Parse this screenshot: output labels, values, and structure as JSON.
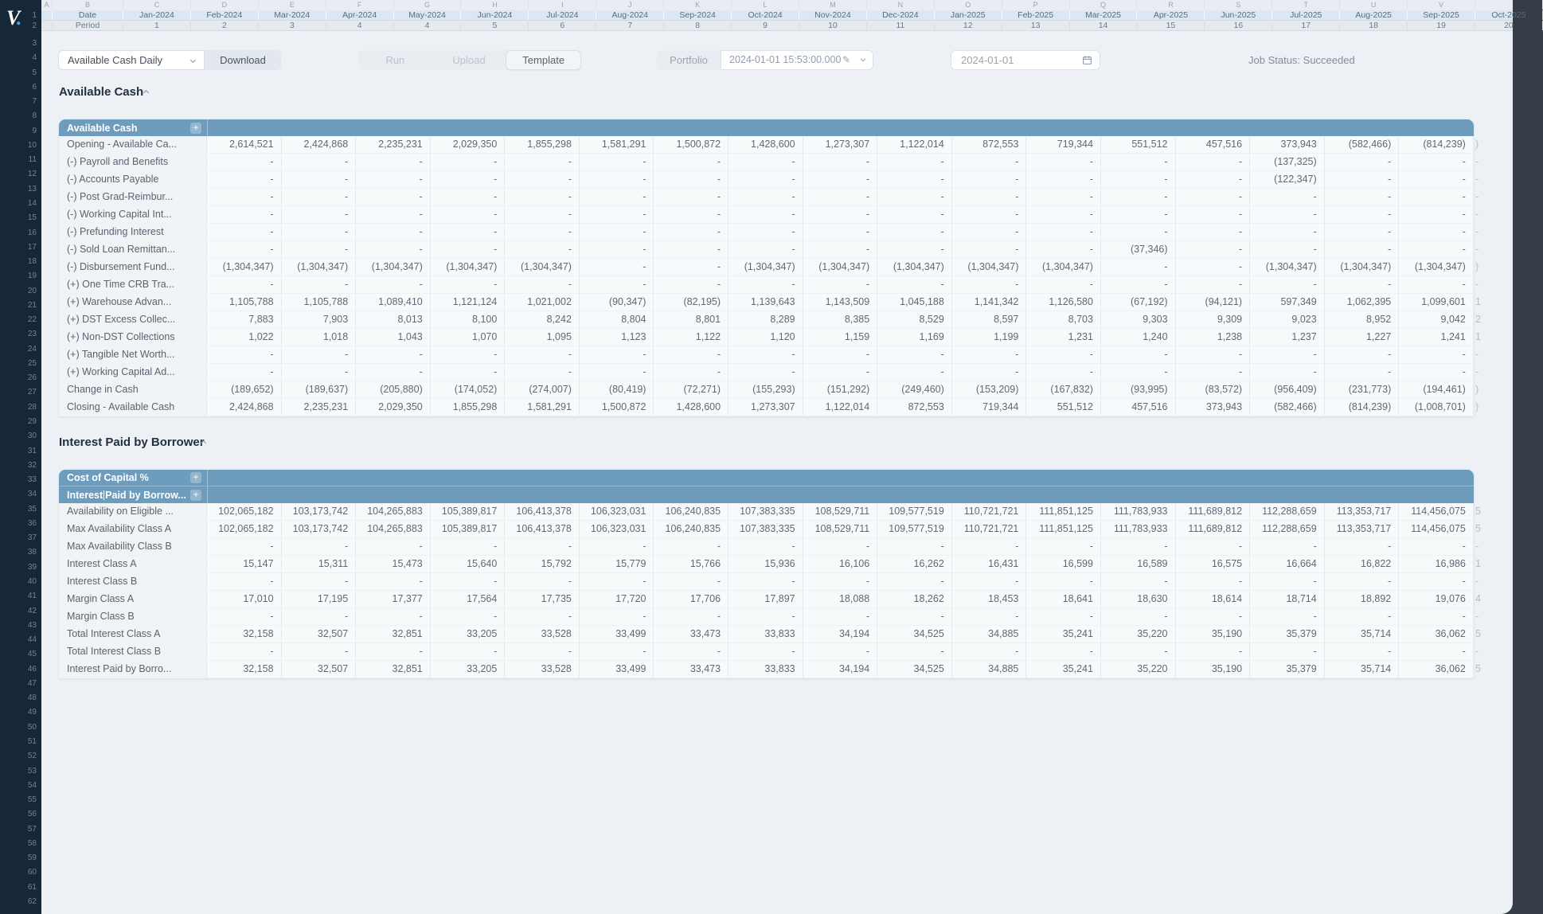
{
  "logo": {
    "v": "V",
    "dot": "."
  },
  "sheet": {
    "row_numbers_first": 1,
    "row_numbers_last": 62,
    "corner_letter_a": "A",
    "corner_letter_b": "B",
    "date_row_label": "Date",
    "period_row_label": "Period",
    "columns": [
      {
        "letter": "C",
        "date": "Jan-2024",
        "period": "1"
      },
      {
        "letter": "D",
        "date": "Feb-2024",
        "period": "2"
      },
      {
        "letter": "E",
        "date": "Mar-2024",
        "period": "3"
      },
      {
        "letter": "F",
        "date": "Apr-2024",
        "period": "4"
      },
      {
        "letter": "G",
        "date": "May-2024",
        "period": "4"
      },
      {
        "letter": "H",
        "date": "Jun-2024",
        "period": "5"
      },
      {
        "letter": "I",
        "date": "Jul-2024",
        "period": "6"
      },
      {
        "letter": "J",
        "date": "Aug-2024",
        "period": "7"
      },
      {
        "letter": "K",
        "date": "Sep-2024",
        "period": "8"
      },
      {
        "letter": "L",
        "date": "Oct-2024",
        "period": "9"
      },
      {
        "letter": "M",
        "date": "Nov-2024",
        "period": "10"
      },
      {
        "letter": "N",
        "date": "Dec-2024",
        "period": "11"
      },
      {
        "letter": "O",
        "date": "Jan-2025",
        "period": "12"
      },
      {
        "letter": "P",
        "date": "Feb-2025",
        "period": "13"
      },
      {
        "letter": "Q",
        "date": "Mar-2025",
        "period": "14"
      },
      {
        "letter": "R",
        "date": "Apr-2025",
        "period": "15"
      },
      {
        "letter": "S",
        "date": "Jun-2025",
        "period": "16"
      },
      {
        "letter": "T",
        "date": "Jul-2025",
        "period": "17"
      },
      {
        "letter": "U",
        "date": "Aug-2025",
        "period": "18"
      },
      {
        "letter": "V",
        "date": "Sep-2025",
        "period": "19"
      }
    ],
    "clipped_column": {
      "letter": "",
      "date": "Oct-2025",
      "period": "20"
    }
  },
  "toolbar": {
    "report_select": "Available Cash Daily",
    "download_label": "Download",
    "run_label": "Run",
    "upload_label": "Upload",
    "template_label": "Template",
    "portfolio_label": "Portfolio",
    "run_datetime": "2024-01-01 15:53:00.000",
    "as_of_date": "2024-01-01",
    "job_status": "Job Status: Succeeded"
  },
  "section1": {
    "title": "Available Cash",
    "table_header": "Available Cash",
    "add_button": "+",
    "rows": [
      {
        "label": "Opening - Available Ca...",
        "values": [
          "2,614,521",
          "2,424,868",
          "2,235,231",
          "2,029,350",
          "1,855,298",
          "1,581,291",
          "1,500,872",
          "1,428,600",
          "1,273,307",
          "1,122,014",
          "872,553",
          "719,344",
          "551,512",
          "457,516",
          "373,943",
          "(582,466)",
          "(814,239)"
        ]
      },
      {
        "label": "(-) Payroll and Benefits",
        "values": [
          "-",
          "-",
          "-",
          "-",
          "-",
          "-",
          "-",
          "-",
          "-",
          "-",
          "-",
          "-",
          "-",
          "-",
          "(137,325)",
          "-",
          "-"
        ]
      },
      {
        "label": "(-) Accounts Payable",
        "values": [
          "-",
          "-",
          "-",
          "-",
          "-",
          "-",
          "-",
          "-",
          "-",
          "-",
          "-",
          "-",
          "-",
          "-",
          "(122,347)",
          "-",
          "-"
        ]
      },
      {
        "label": "(-) Post Grad-Reimbur...",
        "values": [
          "-",
          "-",
          "-",
          "-",
          "-",
          "-",
          "-",
          "-",
          "-",
          "-",
          "-",
          "-",
          "-",
          "-",
          "-",
          "-",
          "-"
        ]
      },
      {
        "label": "(-) Working Capital Int...",
        "values": [
          "-",
          "-",
          "-",
          "-",
          "-",
          "-",
          "-",
          "-",
          "-",
          "-",
          "-",
          "-",
          "-",
          "-",
          "-",
          "-",
          "-"
        ]
      },
      {
        "label": "(-) Prefunding Interest",
        "values": [
          "-",
          "-",
          "-",
          "-",
          "-",
          "-",
          "-",
          "-",
          "-",
          "-",
          "-",
          "-",
          "-",
          "-",
          "-",
          "-",
          "-"
        ]
      },
      {
        "label": "(-) Sold Loan Remittan...",
        "values": [
          "-",
          "-",
          "-",
          "-",
          "-",
          "-",
          "-",
          "-",
          "-",
          "-",
          "-",
          "-",
          "(37,346)",
          "-",
          "-",
          "-",
          "-"
        ]
      },
      {
        "label": "(-) Disbursement Fund...",
        "values": [
          "(1,304,347)",
          "(1,304,347)",
          "(1,304,347)",
          "(1,304,347)",
          "(1,304,347)",
          "-",
          "-",
          "(1,304,347)",
          "(1,304,347)",
          "(1,304,347)",
          "(1,304,347)",
          "(1,304,347)",
          "-",
          "-",
          "(1,304,347)",
          "(1,304,347)",
          "(1,304,347)"
        ]
      },
      {
        "label": "(+) One Time CRB Tra...",
        "values": [
          "-",
          "-",
          "-",
          "-",
          "-",
          "-",
          "-",
          "-",
          "-",
          "-",
          "-",
          "-",
          "-",
          "-",
          "-",
          "-",
          "-"
        ]
      },
      {
        "label": "(+) Warehouse Advan...",
        "values": [
          "1,105,788",
          "1,105,788",
          "1,089,410",
          "1,121,124",
          "1,021,002",
          "(90,347)",
          "(82,195)",
          "1,139,643",
          "1,143,509",
          "1,045,188",
          "1,141,342",
          "1,126,580",
          "(67,192)",
          "(94,121)",
          "597,349",
          "1,062,395",
          "1,099,601"
        ]
      },
      {
        "label": "(+) DST Excess Collec...",
        "values": [
          "7,883",
          "7,903",
          "8,013",
          "8,100",
          "8,242",
          "8,804",
          "8,801",
          "8,289",
          "8,385",
          "8,529",
          "8,597",
          "8,703",
          "9,303",
          "9,309",
          "9,023",
          "8,952",
          "9,042"
        ]
      },
      {
        "label": "(+) Non-DST Collections",
        "values": [
          "1,022",
          "1,018",
          "1,043",
          "1,070",
          "1,095",
          "1,123",
          "1,122",
          "1,120",
          "1,159",
          "1,169",
          "1,199",
          "1,231",
          "1,240",
          "1,238",
          "1,237",
          "1,227",
          "1,241"
        ]
      },
      {
        "label": "(+) Tangible Net Worth...",
        "values": [
          "-",
          "-",
          "-",
          "-",
          "-",
          "-",
          "-",
          "-",
          "-",
          "-",
          "-",
          "-",
          "-",
          "-",
          "-",
          "-",
          "-"
        ]
      },
      {
        "label": "(+) Working Capital Ad...",
        "values": [
          "-",
          "-",
          "-",
          "-",
          "-",
          "-",
          "-",
          "-",
          "-",
          "-",
          "-",
          "-",
          "-",
          "-",
          "-",
          "-",
          "-"
        ]
      },
      {
        "label": "Change in Cash",
        "values": [
          "(189,652)",
          "(189,637)",
          "(205,880)",
          "(174,052)",
          "(274,007)",
          "(80,419)",
          "(72,271)",
          "(155,293)",
          "(151,292)",
          "(249,460)",
          "(153,209)",
          "(167,832)",
          "(93,995)",
          "(83,572)",
          "(956,409)",
          "(231,773)",
          "(194,461)"
        ]
      },
      {
        "label": "Closing - Available Cash",
        "values": [
          "2,424,868",
          "2,235,231",
          "2,029,350",
          "1,855,298",
          "1,581,291",
          "1,500,872",
          "1,428,600",
          "1,273,307",
          "1,122,014",
          "872,553",
          "719,344",
          "551,512",
          "457,516",
          "373,943",
          "(582,466)",
          "(814,239)",
          "(1,008,701)"
        ]
      }
    ],
    "clipped_fragments": [
      ")",
      "-",
      "-",
      "-",
      "-",
      "-",
      "-",
      ")",
      "-",
      "1",
      "2",
      "1",
      "-",
      "-",
      ")",
      ")"
    ]
  },
  "section2": {
    "title": "Interest Paid by Borrower",
    "table_header1": "Cost of Capital %",
    "table_header2_before_caret": "Interest",
    "table_header2_after_caret": "Paid by Borrow...",
    "add_button": "+",
    "rows": [
      {
        "label": "Availability on Eligible ...",
        "values": [
          "102,065,182",
          "103,173,742",
          "104,265,883",
          "105,389,817",
          "106,413,378",
          "106,323,031",
          "106,240,835",
          "107,383,335",
          "108,529,711",
          "109,577,519",
          "110,721,721",
          "111,851,125",
          "111,783,933",
          "111,689,812",
          "112,288,659",
          "113,353,717",
          "114,456,075"
        ]
      },
      {
        "label": "Max Availability Class A",
        "values": [
          "102,065,182",
          "103,173,742",
          "104,265,883",
          "105,389,817",
          "106,413,378",
          "106,323,031",
          "106,240,835",
          "107,383,335",
          "108,529,711",
          "109,577,519",
          "110,721,721",
          "111,851,125",
          "111,783,933",
          "111,689,812",
          "112,288,659",
          "113,353,717",
          "114,456,075"
        ]
      },
      {
        "label": "Max Availability Class B",
        "values": [
          "-",
          "-",
          "-",
          "-",
          "-",
          "-",
          "-",
          "-",
          "-",
          "-",
          "-",
          "-",
          "-",
          "-",
          "-",
          "-",
          "-"
        ]
      },
      {
        "label": "Interest Class A",
        "values": [
          "15,147",
          "15,311",
          "15,473",
          "15,640",
          "15,792",
          "15,779",
          "15,766",
          "15,936",
          "16,106",
          "16,262",
          "16,431",
          "16,599",
          "16,589",
          "16,575",
          "16,664",
          "16,822",
          "16,986"
        ]
      },
      {
        "label": "Interest Class B",
        "values": [
          "-",
          "-",
          "-",
          "-",
          "-",
          "-",
          "-",
          "-",
          "-",
          "-",
          "-",
          "-",
          "-",
          "-",
          "-",
          "-",
          "-"
        ]
      },
      {
        "label": "Margin Class A",
        "values": [
          "17,010",
          "17,195",
          "17,377",
          "17,564",
          "17,735",
          "17,720",
          "17,706",
          "17,897",
          "18,088",
          "18,262",
          "18,453",
          "18,641",
          "18,630",
          "18,614",
          "18,714",
          "18,892",
          "19,076"
        ]
      },
      {
        "label": "Margin Class B",
        "values": [
          "-",
          "-",
          "-",
          "-",
          "-",
          "-",
          "-",
          "-",
          "-",
          "-",
          "-",
          "-",
          "-",
          "-",
          "-",
          "-",
          "-"
        ]
      },
      {
        "label": "Total Interest Class A",
        "values": [
          "32,158",
          "32,507",
          "32,851",
          "33,205",
          "33,528",
          "33,499",
          "33,473",
          "33,833",
          "34,194",
          "34,525",
          "34,885",
          "35,241",
          "35,220",
          "35,190",
          "35,379",
          "35,714",
          "36,062"
        ]
      },
      {
        "label": "Total Interest Class B",
        "values": [
          "-",
          "-",
          "-",
          "-",
          "-",
          "-",
          "-",
          "-",
          "-",
          "-",
          "-",
          "-",
          "-",
          "-",
          "-",
          "-",
          "-"
        ]
      },
      {
        "label": "Interest Paid by Borro...",
        "values": [
          "32,158",
          "32,507",
          "32,851",
          "33,205",
          "33,528",
          "33,499",
          "33,473",
          "33,833",
          "34,194",
          "34,525",
          "34,885",
          "35,241",
          "35,220",
          "35,190",
          "35,379",
          "35,714",
          "36,062"
        ]
      }
    ],
    "clipped_fragments": [
      "5",
      "5",
      "-",
      "1",
      "-",
      "4",
      "-",
      "5",
      "-",
      "5"
    ]
  },
  "colors": {
    "accent_table_header": "#6e9cbd",
    "sidebar": "#16273a",
    "logo_dot_blue": "#4ba0e0",
    "app_background": "#edf1f6",
    "backdrop": "#343d48"
  }
}
